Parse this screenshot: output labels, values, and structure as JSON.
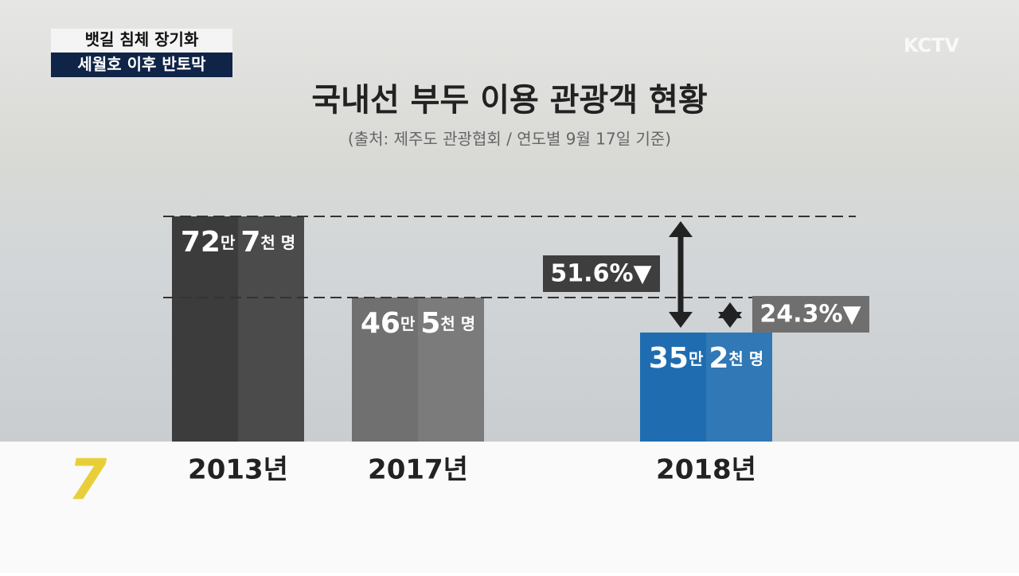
{
  "headline": [
    "뱃길 침체 장기화",
    "세월호 이후 반토막"
  ],
  "logo": "KCTV",
  "channel": "7",
  "chart_data": {
    "type": "bar",
    "title": "국내선 부두 이용 관광객 현황",
    "subtitle": "(출처: 제주도 관광협회 / 연도별 9월 17일 기준)",
    "categories": [
      "2013년",
      "2017년",
      "2018년"
    ],
    "values": [
      727000,
      465000,
      352000
    ],
    "value_labels": [
      "72만 7천 명",
      "46만 5천 명",
      "35만 2천 명"
    ],
    "colors": [
      "#3c3c3c",
      "#707070",
      "#1f6db0"
    ],
    "annotations": [
      {
        "text": "51.6%▼",
        "from": 0,
        "to": 2
      },
      {
        "text": "24.3%▼",
        "from": 1,
        "to": 2
      }
    ]
  }
}
